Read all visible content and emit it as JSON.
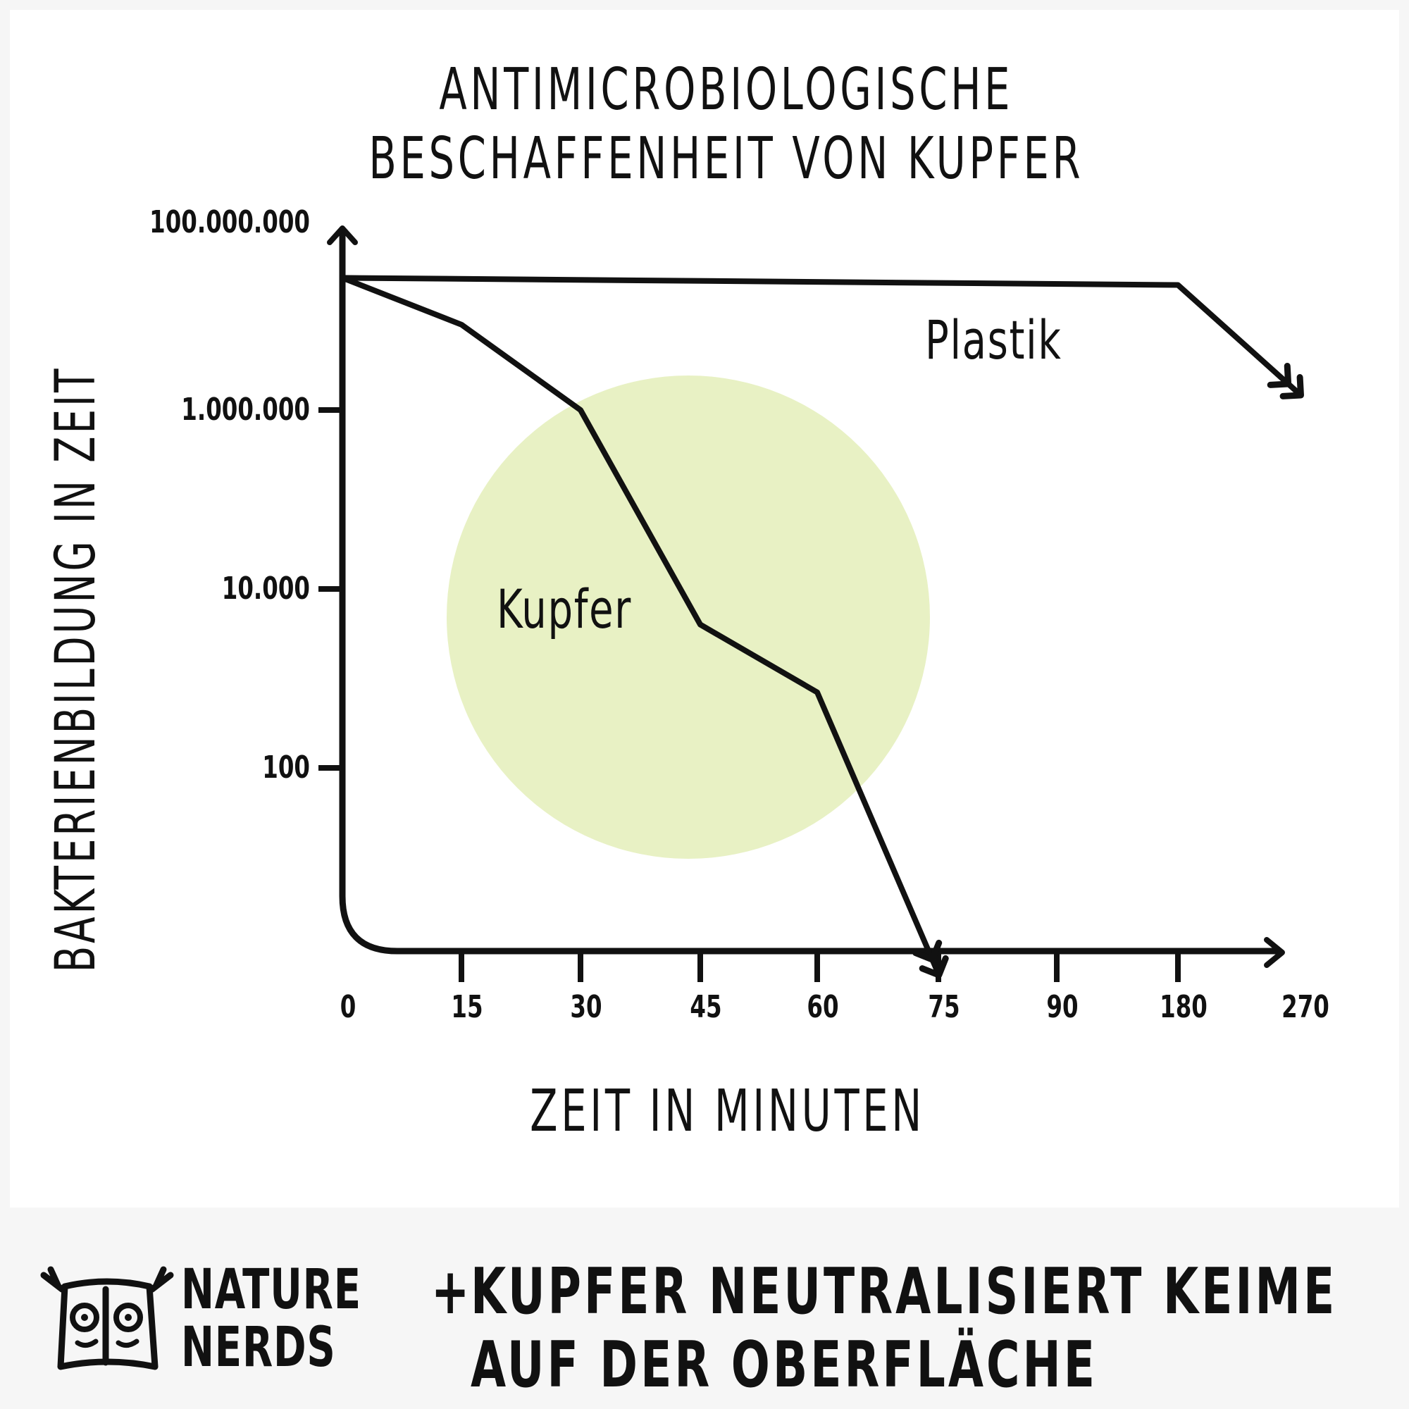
{
  "chart_data": {
    "type": "line",
    "title": "ANTIMICROBIOLOGISCHE BESCHAFFENHEIT VON KUPFER",
    "title_lines": [
      "ANTIMICROBIOLOGISCHE",
      "BESCHAFFENHEIT VON KUPFER"
    ],
    "xlabel": "ZEIT IN MINUTEN",
    "ylabel": "BAKTERIENBILDUNG IN ZEIT",
    "y_scale": "log",
    "categories": [
      "0",
      "15",
      "30",
      "45",
      "60",
      "75",
      "90",
      "180",
      "270"
    ],
    "y_ticks": [
      {
        "value": 100000000,
        "label": "100.000.000"
      },
      {
        "value": 1000000,
        "label": "1.000.000"
      },
      {
        "value": 10000,
        "label": "10.000"
      },
      {
        "value": 100,
        "label": "100"
      }
    ],
    "series": [
      {
        "name": "Plastik",
        "points": [
          {
            "x": "0",
            "y": 30000000
          },
          {
            "x": "180",
            "y": 25000000
          },
          {
            "x": "270",
            "y": 1500000
          }
        ],
        "continues": true
      },
      {
        "name": "Kupfer",
        "points": [
          {
            "x": "0",
            "y": 30000000
          },
          {
            "x": "15",
            "y": 9000000
          },
          {
            "x": "30",
            "y": 1000000
          },
          {
            "x": "45",
            "y": 4000
          },
          {
            "x": "60",
            "y": 700
          },
          {
            "x": "75",
            "y": 0.5
          }
        ],
        "continues": true
      }
    ],
    "highlight_color": "#e8f1c4",
    "line_color": "#111111"
  },
  "footer": {
    "brand": [
      "NATURE",
      "NERDS"
    ],
    "tagline_prefix": "+",
    "tagline": [
      "KUPFER NEUTRALISIERT KEIME",
      "AUF DER OBERFLÄCHE"
    ]
  }
}
